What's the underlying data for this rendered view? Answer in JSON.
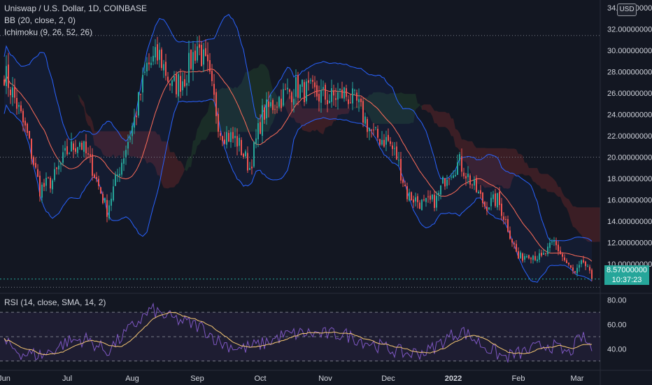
{
  "legend": {
    "title": "Uniswap / U.S. Dollar, 1D, COINBASE",
    "bb": "BB (20, close, 2, 0)",
    "ichimoku": "Ichimoku (9, 26, 52, 26)",
    "rsi": "RSI (14, close, SMA, 14, 2)"
  },
  "currency_button": "USD",
  "last_price": {
    "value": "8.57000000",
    "countdown": "10:37:23"
  },
  "colors": {
    "up": "#26a69a",
    "down": "#ef5350",
    "bb": "#2962ff",
    "basis": "#ff6d5a",
    "rsi": "#7e57c2",
    "rsi_ma": "#f7c873",
    "background": "#131722"
  },
  "chart_data": [
    {
      "type": "candlestick",
      "title": "Uniswap / U.S. Dollar, 1D, COINBASE",
      "ylim": [
        7.3,
        34.6
      ],
      "y_ticks": [
        "34.00000000",
        "32.00000000",
        "30.00000000",
        "28.00000000",
        "26.00000000",
        "24.00000000",
        "22.00000000",
        "20.00000000",
        "18.00000000",
        "16.00000000",
        "14.00000000",
        "12.00000000",
        "10.00000000"
      ],
      "x_ticks": [
        "Jun",
        "Jul",
        "Aug",
        "Sep",
        "Oct",
        "Nov",
        "Dec",
        "2022",
        "Feb",
        "Mar"
      ],
      "dotted_levels": [
        31.4,
        20.0,
        8.57,
        7.8
      ],
      "close_path": [
        [
          "2021-06-01",
          28.0
        ],
        [
          "2021-06-06",
          25.5
        ],
        [
          "2021-06-12",
          22.0
        ],
        [
          "2021-06-18",
          17.0
        ],
        [
          "2021-06-24",
          17.8
        ],
        [
          "2021-07-01",
          20.5
        ],
        [
          "2021-07-07",
          21.5
        ],
        [
          "2021-07-13",
          19.0
        ],
        [
          "2021-07-20",
          15.0
        ],
        [
          "2021-07-26",
          19.0
        ],
        [
          "2021-08-02",
          23.5
        ],
        [
          "2021-08-08",
          28.5
        ],
        [
          "2021-08-14",
          29.5
        ],
        [
          "2021-08-20",
          26.5
        ],
        [
          "2021-08-26",
          27.5
        ],
        [
          "2021-09-01",
          30.5
        ],
        [
          "2021-09-06",
          28.0
        ],
        [
          "2021-09-12",
          22.5
        ],
        [
          "2021-09-20",
          21.5
        ],
        [
          "2021-09-26",
          19.0
        ],
        [
          "2021-10-02",
          24.0
        ],
        [
          "2021-10-10",
          25.5
        ],
        [
          "2021-10-18",
          26.5
        ],
        [
          "2021-10-26",
          26.0
        ],
        [
          "2021-11-03",
          25.5
        ],
        [
          "2021-11-10",
          26.0
        ],
        [
          "2021-11-16",
          25.0
        ],
        [
          "2021-11-24",
          22.0
        ],
        [
          "2021-12-01",
          21.5
        ],
        [
          "2021-12-05",
          20.0
        ],
        [
          "2021-12-10",
          16.5
        ],
        [
          "2021-12-18",
          15.5
        ],
        [
          "2021-12-24",
          16.0
        ],
        [
          "2021-12-29",
          18.5
        ],
        [
          "2022-01-04",
          19.5
        ],
        [
          "2022-01-10",
          17.5
        ],
        [
          "2022-01-16",
          15.5
        ],
        [
          "2022-01-22",
          16.0
        ],
        [
          "2022-01-26",
          14.0
        ],
        [
          "2022-02-01",
          10.5
        ],
        [
          "2022-02-06",
          11.0
        ],
        [
          "2022-02-12",
          10.5
        ],
        [
          "2022-02-18",
          12.0
        ],
        [
          "2022-02-24",
          10.0
        ],
        [
          "2022-02-28",
          9.0
        ],
        [
          "2022-03-04",
          10.2
        ],
        [
          "2022-03-08",
          8.57
        ]
      ],
      "last_close": 8.57
    },
    {
      "type": "line",
      "title": "RSI (14, close, SMA, 14, 2)",
      "ylim": [
        23,
        85
      ],
      "y_ticks": [
        "80.00",
        "60.00",
        "40.00"
      ],
      "bands": [
        70,
        50,
        30
      ],
      "rsi_path": [
        [
          "2021-06-01",
          45
        ],
        [
          "2021-06-10",
          36
        ],
        [
          "2021-06-20",
          35
        ],
        [
          "2021-07-01",
          46
        ],
        [
          "2021-07-10",
          48
        ],
        [
          "2021-07-20",
          38
        ],
        [
          "2021-08-01",
          58
        ],
        [
          "2021-08-10",
          72
        ],
        [
          "2021-08-18",
          66
        ],
        [
          "2021-08-26",
          62
        ],
        [
          "2021-09-03",
          58
        ],
        [
          "2021-09-12",
          45
        ],
        [
          "2021-09-22",
          40
        ],
        [
          "2021-10-02",
          44
        ],
        [
          "2021-10-12",
          51
        ],
        [
          "2021-10-22",
          53
        ],
        [
          "2021-11-01",
          52
        ],
        [
          "2021-11-10",
          52
        ],
        [
          "2021-11-20",
          46
        ],
        [
          "2021-12-01",
          40
        ],
        [
          "2021-12-10",
          36
        ],
        [
          "2021-12-20",
          38
        ],
        [
          "2021-12-30",
          50
        ],
        [
          "2022-01-05",
          55
        ],
        [
          "2022-01-15",
          43
        ],
        [
          "2022-01-25",
          33
        ],
        [
          "2022-02-05",
          38
        ],
        [
          "2022-02-15",
          44
        ],
        [
          "2022-02-25",
          36
        ],
        [
          "2022-03-03",
          50
        ],
        [
          "2022-03-08",
          41
        ]
      ]
    }
  ]
}
